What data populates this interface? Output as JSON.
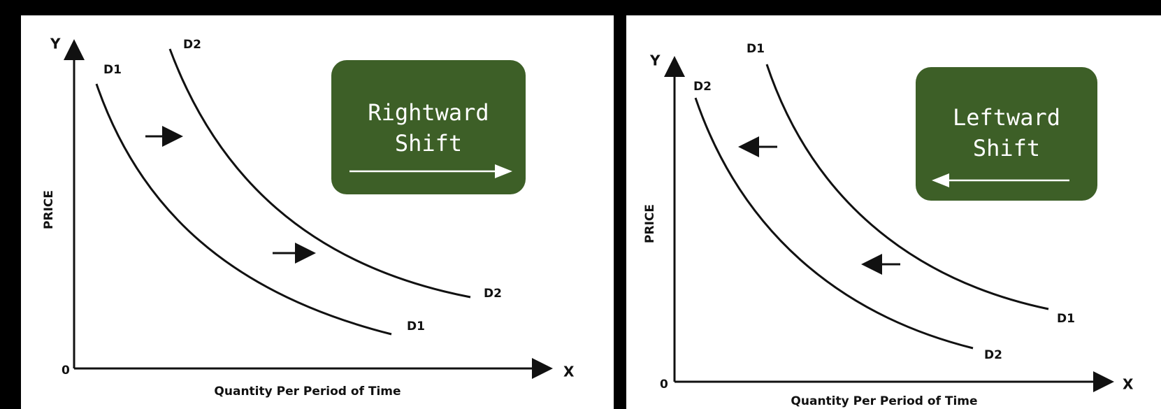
{
  "panels": [
    {
      "y_axis": "Y",
      "x_axis": "X",
      "origin": "0",
      "price_label": "PRICE",
      "quantity_label": "Quantity Per Period of Time",
      "curve_labels": {
        "d1_top": "D1",
        "d2_top": "D2",
        "d2_end": "D2",
        "d1_end": "D1"
      },
      "box": [
        "Rightward",
        "Shift"
      ]
    },
    {
      "y_axis": "Y",
      "x_axis": "X",
      "origin": "0",
      "price_label": "PRICE",
      "quantity_label": "Quantity Per Period of Time",
      "curve_labels": {
        "d1_top": "D1",
        "d2_top": "D2",
        "d2_end": "D2",
        "d1_end": "D1"
      },
      "box": [
        "Leftward",
        "Shift"
      ]
    }
  ]
}
